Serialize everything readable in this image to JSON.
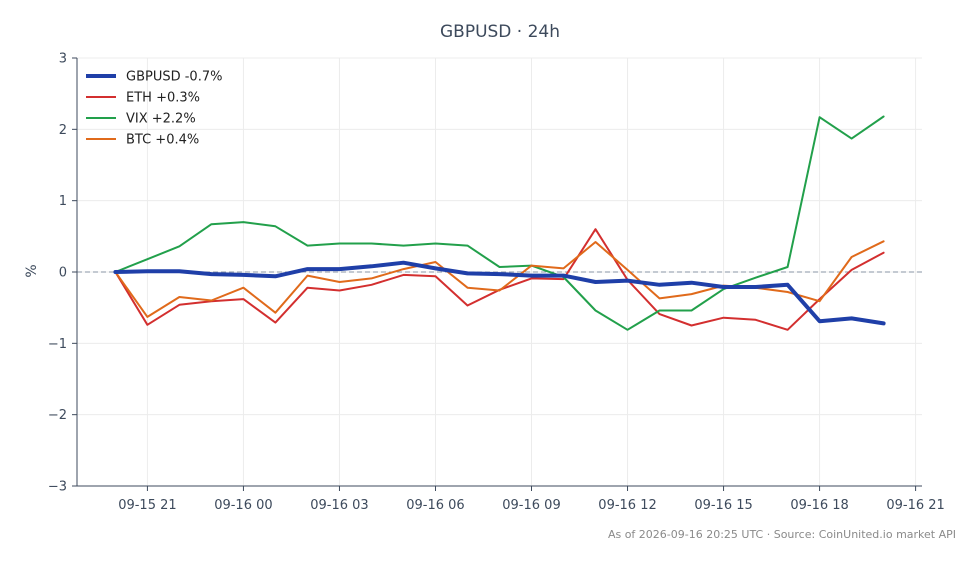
{
  "chart_data": {
    "type": "line",
    "title": "GBPUSD · 24h",
    "ylabel": "%",
    "xlabel": "",
    "ylim": [
      -3,
      3
    ],
    "y_ticks": [
      "−3",
      "−2",
      "−1",
      "0",
      "1",
      "2",
      "3"
    ],
    "y_tick_values": [
      -3,
      -2,
      -1,
      0,
      1,
      2,
      3
    ],
    "x_tick_labels": [
      "09-15 21",
      "09-16 00",
      "09-16 03",
      "09-16 06",
      "09-16 09",
      "09-16 12",
      "09-16 15",
      "09-16 18",
      "09-16 21"
    ],
    "x_tick_hours": [
      -3,
      0,
      3,
      6,
      9,
      12,
      15,
      18,
      21
    ],
    "x_hours": [
      -4.0,
      -3.0,
      -2.0,
      -1.0,
      0.0,
      1.0,
      2.0,
      3.0,
      4.0,
      5.0,
      6.0,
      7.0,
      8.0,
      9.0,
      10.0,
      11.0,
      12.0,
      13.0,
      14.0,
      15.0,
      16.0,
      17.0,
      18.0,
      19.0,
      20.0
    ],
    "xlim_hours": [
      -5.2,
      21.2
    ],
    "grid": true,
    "legend_position": "top-left",
    "baseline": 0,
    "series": [
      {
        "name": "GBPUSD -0.7%",
        "color": "#1f3fa8",
        "width": 4,
        "values": [
          0,
          0.01,
          0.01,
          -0.03,
          -0.04,
          -0.06,
          0.04,
          0.04,
          0.08,
          0.13,
          0.05,
          -0.02,
          -0.03,
          -0.05,
          -0.05,
          -0.14,
          -0.12,
          -0.18,
          -0.15,
          -0.21,
          -0.21,
          -0.18,
          -0.69,
          -0.65,
          -0.72
        ]
      },
      {
        "name": "ETH +0.3%",
        "color": "#d32f2f",
        "width": 2,
        "values": [
          0,
          -0.74,
          -0.46,
          -0.41,
          -0.38,
          -0.71,
          -0.22,
          -0.26,
          -0.18,
          -0.04,
          -0.06,
          -0.47,
          -0.25,
          -0.09,
          -0.1,
          0.6,
          -0.11,
          -0.59,
          -0.75,
          -0.64,
          -0.67,
          -0.81,
          -0.38,
          0.03,
          0.27
        ]
      },
      {
        "name": "VIX +2.2%",
        "color": "#22a04b",
        "width": 2,
        "values": [
          0,
          0.18,
          0.36,
          0.67,
          0.7,
          0.64,
          0.37,
          0.4,
          0.4,
          0.37,
          0.4,
          0.37,
          0.07,
          0.09,
          -0.07,
          -0.54,
          -0.81,
          -0.54,
          -0.54,
          -0.24,
          -0.08,
          0.07,
          2.17,
          1.87,
          2.18
        ]
      },
      {
        "name": "BTC +0.4%",
        "color": "#e06a1b",
        "width": 2,
        "values": [
          0,
          -0.63,
          -0.35,
          -0.4,
          -0.22,
          -0.57,
          -0.05,
          -0.14,
          -0.09,
          0.04,
          0.14,
          -0.22,
          -0.26,
          0.09,
          0.05,
          0.42,
          0.03,
          -0.37,
          -0.31,
          -0.19,
          -0.22,
          -0.28,
          -0.41,
          0.21,
          0.43
        ]
      }
    ]
  },
  "footer": "As of 2026-09-16 20:25 UTC · Source: CoinUnited.io market API",
  "colors": {
    "axis": "#3d4a5c",
    "grid": "#ececec",
    "baseline": "#8a94a6"
  }
}
